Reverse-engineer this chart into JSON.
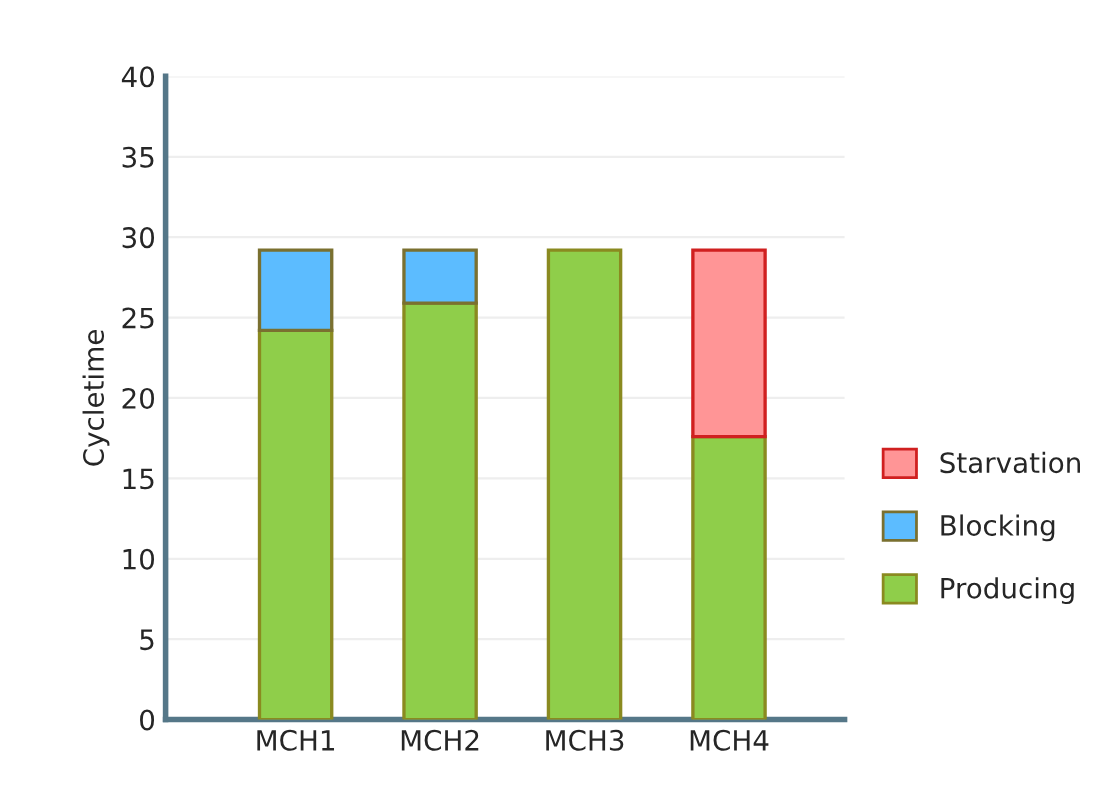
{
  "chart_data": {
    "type": "bar",
    "stacked": true,
    "ylabel": "Cycletime",
    "categories": [
      "MCH1",
      "MCH2",
      "MCH3",
      "MCH4"
    ],
    "series": [
      {
        "name": "Producing",
        "color": "#8fce4a",
        "values": [
          24.2,
          25.9,
          29.2,
          17.6
        ]
      },
      {
        "name": "Blocking",
        "color": "#5cbcff",
        "values": [
          5.0,
          3.3,
          null,
          null
        ]
      },
      {
        "name": "Starvation",
        "color": "#ff9596",
        "values": [
          null,
          null,
          null,
          11.6
        ]
      }
    ],
    "ylim": [
      0,
      40
    ],
    "yticks": [
      0,
      5,
      10,
      15,
      20,
      25,
      30,
      35,
      40
    ],
    "grid": "y",
    "legend": "right"
  }
}
